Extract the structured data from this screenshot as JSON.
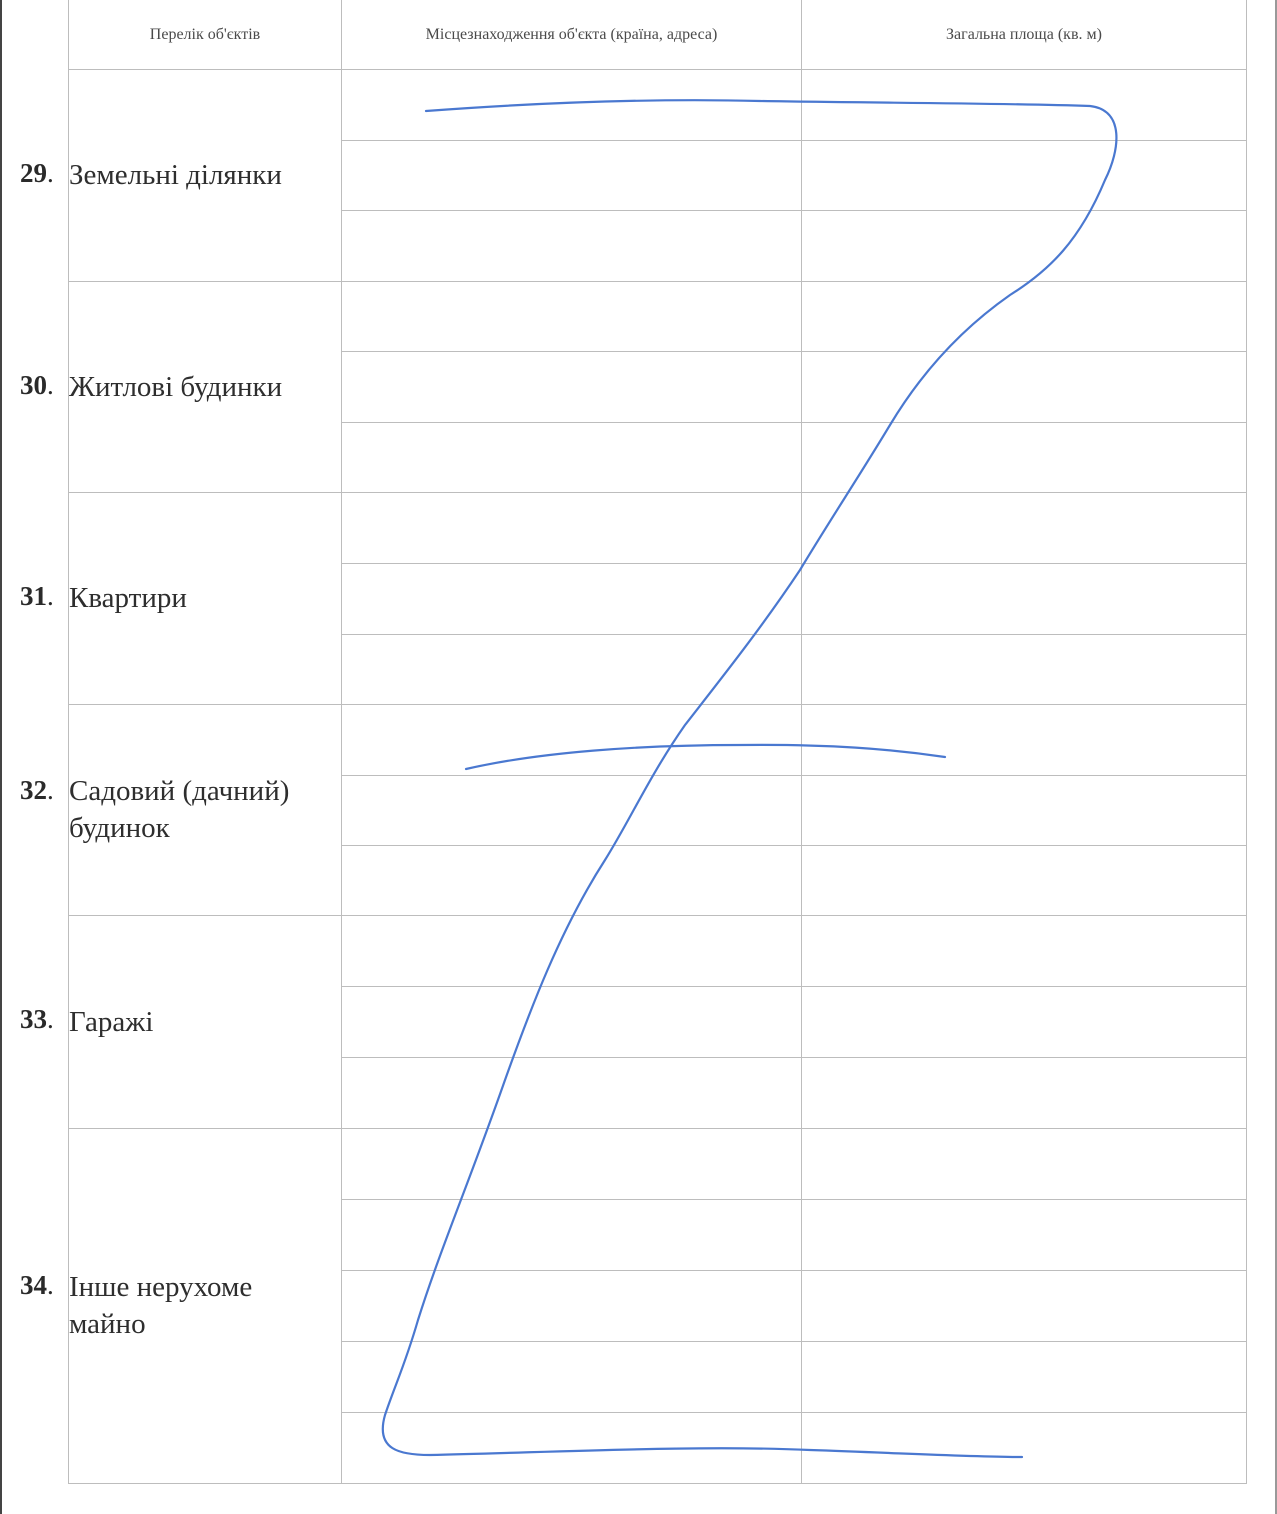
{
  "table": {
    "headers": [
      "Перелік об'єктів",
      "Місцезнаходження об'єкта (країна, адреса)",
      "Загальна площа (кв. м)"
    ],
    "sections": [
      {
        "number": "29",
        "label_lines": [
          "Земельні ділянки"
        ]
      },
      {
        "number": "30",
        "label_lines": [
          "Житлові будинки"
        ]
      },
      {
        "number": "31",
        "label_lines": [
          "Квартири"
        ]
      },
      {
        "number": "32",
        "label_lines": [
          "Садовий (дачний)",
          "будинок"
        ]
      },
      {
        "number": "33",
        "label_lines": [
          "Гаражі"
        ]
      },
      {
        "number": "34",
        "label_lines": [
          "Інше нерухоме",
          "майно"
        ]
      }
    ]
  },
  "annotation": {
    "stroke_color": "#4a78d0",
    "type": "handwritten Z-shaped cancellation"
  }
}
